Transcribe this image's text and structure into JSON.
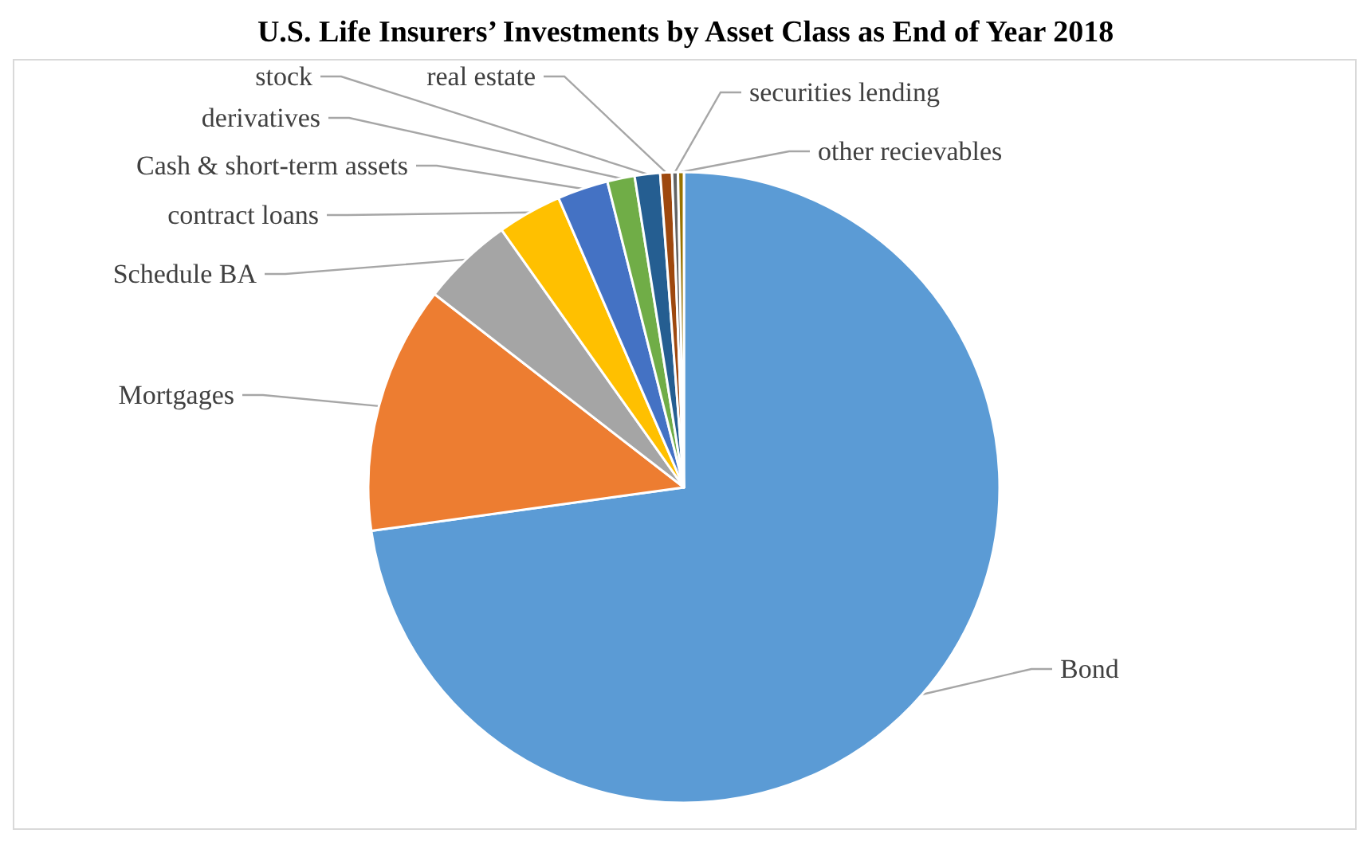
{
  "chart_data": {
    "type": "pie",
    "title": "U.S. Life Insurers’ Investments by Asset Class as End of Year 2018",
    "categories": [
      "Bond",
      "Mortgages",
      "Schedule BA",
      "contract loans",
      "Cash & short-term assets",
      "derivatives",
      "stock",
      "real estate",
      "securities lending",
      "other recievables"
    ],
    "values": [
      72.8,
      12.7,
      4.7,
      3.3,
      2.6,
      1.4,
      1.3,
      0.6,
      0.3,
      0.3
    ],
    "colors": [
      "#5b9bd5",
      "#ed7d31",
      "#a5a5a5",
      "#ffc000",
      "#4472c4",
      "#70ad47",
      "#255e91",
      "#9e480e",
      "#636363",
      "#997300"
    ]
  }
}
